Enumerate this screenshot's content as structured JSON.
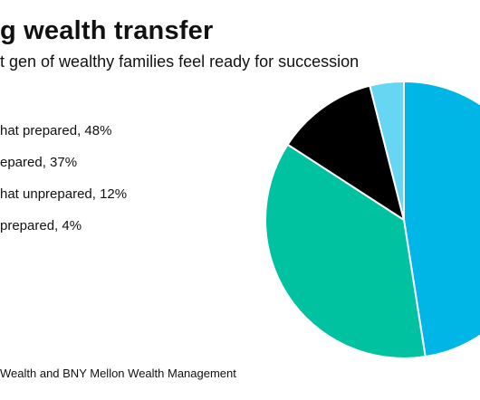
{
  "title": "g wealth transfer",
  "subtitle": "t gen of wealthy families feel ready for succession",
  "legend": [
    "hat prepared, 48%",
    "epared, 37%",
    "hat unprepared, 12%",
    "prepared, 4%"
  ],
  "source": "Wealth and BNY Mellon Wealth Management",
  "chart_data": {
    "type": "pie",
    "categories": [
      "hat prepared",
      "epared",
      "hat unprepared",
      "prepared"
    ],
    "values": [
      48,
      37,
      12,
      4
    ],
    "colors": [
      "#00b6e6",
      "#00c2a0",
      "#000000",
      "#66d6f2"
    ],
    "title": "g wealth transfer",
    "subtitle": "t gen of wealthy families feel ready for succession"
  }
}
